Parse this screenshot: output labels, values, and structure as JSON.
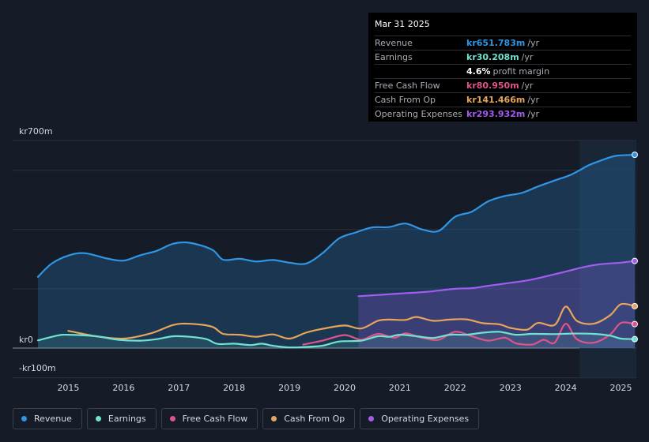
{
  "tooltip": {
    "date": "Mar 31 2025",
    "rows": [
      {
        "label": "Revenue",
        "value": "kr651.783m",
        "unit": "/yr",
        "color": "#2f96e6"
      },
      {
        "label": "Earnings",
        "value": "kr30.208m",
        "unit": "/yr",
        "color": "#6fe3cf"
      },
      {
        "label": "",
        "value": "4.6%",
        "unit": "profit margin",
        "color": "#ffffff"
      },
      {
        "label": "Free Cash Flow",
        "value": "kr80.950m",
        "unit": "/yr",
        "color": "#e0538a"
      },
      {
        "label": "Cash From Op",
        "value": "kr141.466m",
        "unit": "/yr",
        "color": "#e7a55b"
      },
      {
        "label": "Operating Expenses",
        "value": "kr293.932m",
        "unit": "/yr",
        "color": "#a35cf0"
      }
    ]
  },
  "legend": [
    {
      "label": "Revenue",
      "color": "#2f96e6"
    },
    {
      "label": "Earnings",
      "color": "#6fe3cf"
    },
    {
      "label": "Free Cash Flow",
      "color": "#e0538a"
    },
    {
      "label": "Cash From Op",
      "color": "#e7a55b"
    },
    {
      "label": "Operating Expenses",
      "color": "#a35cf0"
    }
  ],
  "chart_data": {
    "type": "line",
    "title": "",
    "y_tick_labels": {
      "top": "kr700m",
      "zero": "kr0",
      "bottom": "-kr100m"
    },
    "ylim": [
      -100,
      700
    ],
    "xlim": [
      2014.45,
      2025.25
    ],
    "x_tick_labels": [
      "2015",
      "2016",
      "2017",
      "2018",
      "2019",
      "2020",
      "2021",
      "2022",
      "2023",
      "2024",
      "2025"
    ],
    "x_tick_values": [
      2015,
      2016,
      2017,
      2018,
      2019,
      2020,
      2021,
      2022,
      2023,
      2024,
      2025
    ],
    "highlight_from": 2024.25,
    "series": [
      {
        "name": "Revenue",
        "color": "#2f96e6",
        "fill": true,
        "points": [
          [
            2014.45,
            240
          ],
          [
            2014.7,
            285
          ],
          [
            2015.0,
            312
          ],
          [
            2015.3,
            320
          ],
          [
            2015.7,
            302
          ],
          [
            2016.0,
            295
          ],
          [
            2016.3,
            313
          ],
          [
            2016.6,
            328
          ],
          [
            2016.9,
            352
          ],
          [
            2017.2,
            355
          ],
          [
            2017.6,
            332
          ],
          [
            2017.8,
            298
          ],
          [
            2018.1,
            301
          ],
          [
            2018.4,
            292
          ],
          [
            2018.7,
            297
          ],
          [
            2019.0,
            288
          ],
          [
            2019.3,
            285
          ],
          [
            2019.6,
            320
          ],
          [
            2019.9,
            370
          ],
          [
            2020.2,
            390
          ],
          [
            2020.5,
            407
          ],
          [
            2020.8,
            408
          ],
          [
            2021.1,
            420
          ],
          [
            2021.4,
            400
          ],
          [
            2021.7,
            395
          ],
          [
            2022.0,
            443
          ],
          [
            2022.3,
            460
          ],
          [
            2022.6,
            495
          ],
          [
            2022.9,
            513
          ],
          [
            2023.2,
            523
          ],
          [
            2023.5,
            545
          ],
          [
            2023.8,
            565
          ],
          [
            2024.1,
            585
          ],
          [
            2024.4,
            615
          ],
          [
            2024.6,
            630
          ],
          [
            2024.9,
            648
          ],
          [
            2025.25,
            651.783
          ]
        ]
      },
      {
        "name": "Operating Expenses",
        "color": "#a35cf0",
        "fill": true,
        "points": [
          [
            2020.25,
            175
          ],
          [
            2020.6,
            179
          ],
          [
            2021.0,
            184
          ],
          [
            2021.5,
            190
          ],
          [
            2022.0,
            200
          ],
          [
            2022.3,
            202
          ],
          [
            2022.6,
            210
          ],
          [
            2023.0,
            220
          ],
          [
            2023.3,
            228
          ],
          [
            2023.6,
            240
          ],
          [
            2024.0,
            258
          ],
          [
            2024.3,
            272
          ],
          [
            2024.6,
            282
          ],
          [
            2025.0,
            288
          ],
          [
            2025.25,
            293.932
          ]
        ]
      },
      {
        "name": "Cash From Op",
        "color": "#e7a55b",
        "fill": false,
        "points": [
          [
            2015.0,
            58
          ],
          [
            2015.5,
            40
          ],
          [
            2016.0,
            32
          ],
          [
            2016.5,
            50
          ],
          [
            2016.9,
            78
          ],
          [
            2017.2,
            82
          ],
          [
            2017.6,
            72
          ],
          [
            2017.8,
            48
          ],
          [
            2018.1,
            45
          ],
          [
            2018.4,
            38
          ],
          [
            2018.7,
            46
          ],
          [
            2019.0,
            32
          ],
          [
            2019.3,
            52
          ],
          [
            2019.6,
            65
          ],
          [
            2020.0,
            76
          ],
          [
            2020.3,
            66
          ],
          [
            2020.6,
            92
          ],
          [
            2020.8,
            96
          ],
          [
            2021.1,
            95
          ],
          [
            2021.3,
            105
          ],
          [
            2021.6,
            92
          ],
          [
            2021.9,
            96
          ],
          [
            2022.2,
            97
          ],
          [
            2022.5,
            84
          ],
          [
            2022.8,
            80
          ],
          [
            2023.0,
            68
          ],
          [
            2023.3,
            62
          ],
          [
            2023.5,
            85
          ],
          [
            2023.8,
            78
          ],
          [
            2024.0,
            140
          ],
          [
            2024.2,
            92
          ],
          [
            2024.5,
            82
          ],
          [
            2024.8,
            110
          ],
          [
            2025.0,
            148
          ],
          [
            2025.25,
            141.466
          ]
        ]
      },
      {
        "name": "Free Cash Flow",
        "color": "#e0538a",
        "fill": false,
        "points": [
          [
            2019.25,
            12
          ],
          [
            2019.6,
            25
          ],
          [
            2020.0,
            44
          ],
          [
            2020.3,
            28
          ],
          [
            2020.6,
            48
          ],
          [
            2020.9,
            35
          ],
          [
            2021.1,
            50
          ],
          [
            2021.4,
            35
          ],
          [
            2021.7,
            28
          ],
          [
            2022.0,
            55
          ],
          [
            2022.3,
            40
          ],
          [
            2022.6,
            25
          ],
          [
            2022.9,
            35
          ],
          [
            2023.1,
            16
          ],
          [
            2023.4,
            12
          ],
          [
            2023.6,
            28
          ],
          [
            2023.8,
            18
          ],
          [
            2024.0,
            82
          ],
          [
            2024.2,
            30
          ],
          [
            2024.5,
            18
          ],
          [
            2024.8,
            45
          ],
          [
            2025.0,
            85
          ],
          [
            2025.25,
            80.95
          ]
        ]
      },
      {
        "name": "Earnings",
        "color": "#6fe3cf",
        "fill": true,
        "points": [
          [
            2014.45,
            26
          ],
          [
            2014.8,
            42
          ],
          [
            2015.0,
            45
          ],
          [
            2015.5,
            40
          ],
          [
            2015.9,
            28
          ],
          [
            2016.3,
            25
          ],
          [
            2016.6,
            30
          ],
          [
            2016.9,
            40
          ],
          [
            2017.2,
            38
          ],
          [
            2017.5,
            30
          ],
          [
            2017.7,
            14
          ],
          [
            2018.0,
            15
          ],
          [
            2018.3,
            10
          ],
          [
            2018.5,
            15
          ],
          [
            2018.7,
            8
          ],
          [
            2019.0,
            2
          ],
          [
            2019.3,
            4
          ],
          [
            2019.6,
            8
          ],
          [
            2019.9,
            22
          ],
          [
            2020.3,
            25
          ],
          [
            2020.6,
            40
          ],
          [
            2020.8,
            38
          ],
          [
            2021.0,
            45
          ],
          [
            2021.3,
            40
          ],
          [
            2021.6,
            34
          ],
          [
            2021.9,
            45
          ],
          [
            2022.2,
            45
          ],
          [
            2022.5,
            52
          ],
          [
            2022.8,
            55
          ],
          [
            2023.1,
            45
          ],
          [
            2023.4,
            48
          ],
          [
            2023.8,
            47
          ],
          [
            2024.1,
            49
          ],
          [
            2024.5,
            48
          ],
          [
            2024.8,
            42
          ],
          [
            2025.0,
            32
          ],
          [
            2025.25,
            30.208
          ]
        ]
      }
    ]
  }
}
